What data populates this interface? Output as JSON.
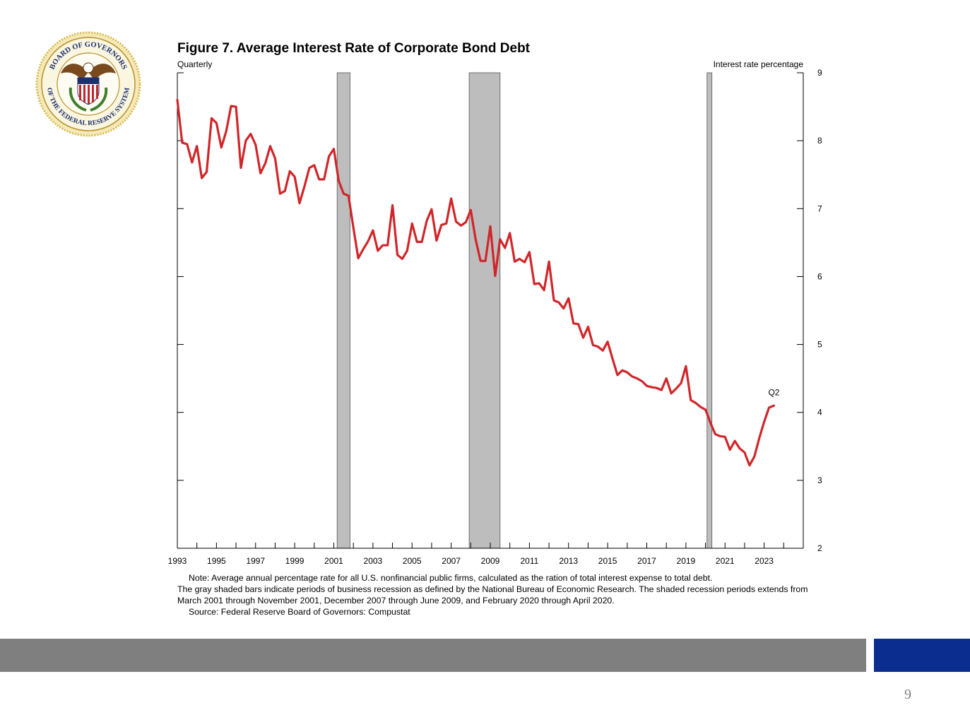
{
  "logo": {
    "text_top": "BOARD OF GOVERNORS",
    "text_bottom": "OF THE FEDERAL RESERVE SYSTEM"
  },
  "chart_data": {
    "type": "line",
    "title": "Figure 7. Average Interest Rate of Corporate Bond Debt",
    "frequency_label": "Quarterly",
    "ylabel": "Interest rate percentage",
    "ylim": [
      2,
      9
    ],
    "yticks": [
      2,
      3,
      4,
      5,
      6,
      7,
      8,
      9
    ],
    "xlim": [
      1993,
      2025
    ],
    "xtick_labels": [
      "1993",
      "1995",
      "1997",
      "1999",
      "2001",
      "2003",
      "2005",
      "2007",
      "2009",
      "2011",
      "2013",
      "2015",
      "2017",
      "2019",
      "2021",
      "2023"
    ],
    "annotation": {
      "label": "Q2",
      "x": 2023.5,
      "y": 4.25
    },
    "recessions": [
      {
        "start": 2001.17,
        "end": 2001.83
      },
      {
        "start": 2007.92,
        "end": 2009.5
      },
      {
        "start": 2020.08,
        "end": 2020.33
      }
    ],
    "series": [
      {
        "name": "Average interest rate",
        "color": "#d0262a",
        "x": [
          1993.0,
          1993.25,
          1993.5,
          1993.75,
          1994.0,
          1994.25,
          1994.5,
          1994.75,
          1995.0,
          1995.25,
          1995.5,
          1995.75,
          1996.0,
          1996.25,
          1996.5,
          1996.75,
          1997.0,
          1997.25,
          1997.5,
          1997.75,
          1998.0,
          1998.25,
          1998.5,
          1998.75,
          1999.0,
          1999.25,
          1999.5,
          1999.75,
          2000.0,
          2000.25,
          2000.5,
          2000.75,
          2001.0,
          2001.25,
          2001.5,
          2001.75,
          2002.0,
          2002.25,
          2002.5,
          2002.75,
          2003.0,
          2003.25,
          2003.5,
          2003.75,
          2004.0,
          2004.25,
          2004.5,
          2004.75,
          2005.0,
          2005.25,
          2005.5,
          2005.75,
          2006.0,
          2006.25,
          2006.5,
          2006.75,
          2007.0,
          2007.25,
          2007.5,
          2007.75,
          2008.0,
          2008.25,
          2008.5,
          2008.75,
          2009.0,
          2009.25,
          2009.5,
          2009.75,
          2010.0,
          2010.25,
          2010.5,
          2010.75,
          2011.0,
          2011.25,
          2011.5,
          2011.75,
          2012.0,
          2012.25,
          2012.5,
          2012.75,
          2013.0,
          2013.25,
          2013.5,
          2013.75,
          2014.0,
          2014.25,
          2014.5,
          2014.75,
          2015.0,
          2015.25,
          2015.5,
          2015.75,
          2016.0,
          2016.25,
          2016.5,
          2016.75,
          2017.0,
          2017.25,
          2017.5,
          2017.75,
          2018.0,
          2018.25,
          2018.5,
          2018.75,
          2019.0,
          2019.25,
          2019.5,
          2019.75,
          2020.0,
          2020.25,
          2020.5,
          2020.75,
          2021.0,
          2021.25,
          2021.5,
          2021.75,
          2022.0,
          2022.25,
          2022.5,
          2022.75,
          2023.0,
          2023.25,
          2023.5
        ],
        "values": [
          8.6,
          7.97,
          7.95,
          7.68,
          7.92,
          7.45,
          7.54,
          8.33,
          8.26,
          7.9,
          8.14,
          8.51,
          8.5,
          7.6,
          8.0,
          8.1,
          7.94,
          7.52,
          7.67,
          7.92,
          7.74,
          7.22,
          7.26,
          7.55,
          7.47,
          7.08,
          7.33,
          7.6,
          7.64,
          7.43,
          7.43,
          7.77,
          7.88,
          7.41,
          7.22,
          7.19,
          6.72,
          6.27,
          6.4,
          6.52,
          6.68,
          6.38,
          6.46,
          6.46,
          7.05,
          6.32,
          6.26,
          6.38,
          6.78,
          6.51,
          6.51,
          6.82,
          6.99,
          6.53,
          6.76,
          6.78,
          7.15,
          6.81,
          6.75,
          6.8,
          6.98,
          6.55,
          6.23,
          6.23,
          6.74,
          6.01,
          6.55,
          6.42,
          6.64,
          6.22,
          6.26,
          6.21,
          6.36,
          5.89,
          5.9,
          5.8,
          6.22,
          5.65,
          5.62,
          5.53,
          5.68,
          5.31,
          5.3,
          5.1,
          5.26,
          4.99,
          4.97,
          4.91,
          5.04,
          4.79,
          4.55,
          4.62,
          4.59,
          4.53,
          4.5,
          4.46,
          4.39,
          4.37,
          4.36,
          4.33,
          4.5,
          4.28,
          4.35,
          4.43,
          4.68,
          4.18,
          4.14,
          4.08,
          4.04,
          3.85,
          3.68,
          3.65,
          3.64,
          3.45,
          3.58,
          3.47,
          3.41,
          3.22,
          3.35,
          3.62,
          3.86,
          4.07,
          4.1
        ]
      }
    ]
  },
  "note": {
    "line1": "Note: Average annual percentage rate for all U.S. nonfinancial public firms, calculated as the ration of total interest expense to total debt.",
    "line2": "The gray shaded bars indicate periods of business recession as defined by the National Bureau of Economic Research. The shaded recession periods extends from March 2001 through November 2001, December 2007 through June 2009, and February 2020 through April 2020.",
    "source": "Source: Federal Reserve Board of Governors: Compustat"
  },
  "footer": {
    "page_number": "9",
    "gray_color": "#7f7f7f",
    "blue_color": "#0b2d8f"
  }
}
